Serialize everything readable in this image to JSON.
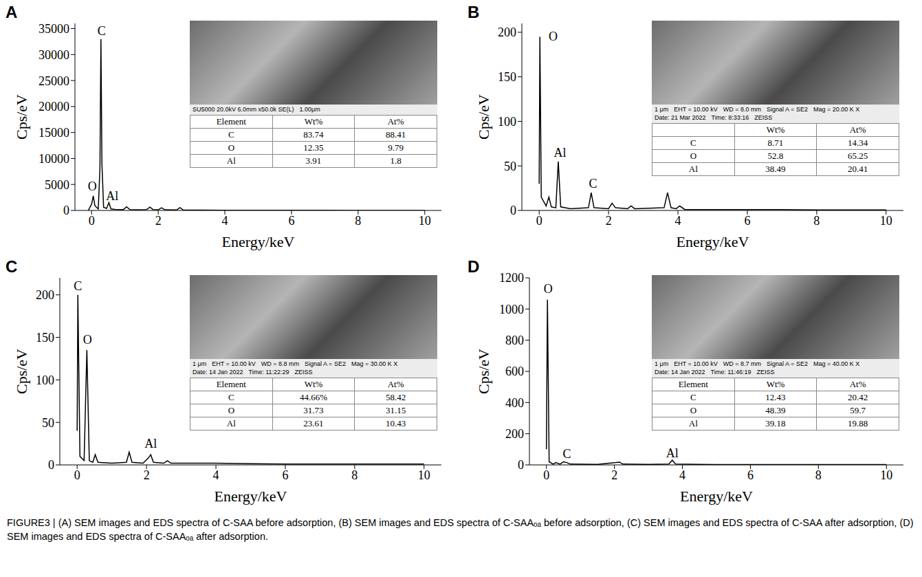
{
  "chart_data": [
    {
      "type": "line",
      "title": "A",
      "x_label": "Energy/keV",
      "y_label": "Cps/eV",
      "color": "#000000",
      "grid": false,
      "x": [
        -0.1,
        0,
        0.05,
        0.1,
        0.2,
        0.25,
        0.28,
        0.31,
        0.36,
        0.45,
        0.52,
        0.58,
        0.7,
        0.95,
        1.05,
        1.15,
        1.4,
        1.65,
        1.75,
        1.85,
        2.0,
        2.1,
        2.2,
        2.55,
        2.65,
        2.75,
        3.0,
        3.3,
        4,
        5,
        6,
        7,
        8,
        9,
        10
      ],
      "values": [
        0,
        1200,
        2800,
        900,
        300,
        8000,
        33000,
        9000,
        600,
        400,
        1500,
        300,
        200,
        150,
        700,
        150,
        120,
        150,
        650,
        150,
        120,
        500,
        120,
        100,
        550,
        100,
        80,
        60,
        40,
        30,
        20,
        20,
        15,
        10,
        10
      ],
      "xlim": [
        -0.5,
        10.5
      ],
      "xticks": [
        0,
        2,
        4,
        6,
        8,
        10
      ],
      "ylim": [
        0,
        36000
      ],
      "yticks": [
        0,
        5000,
        10000,
        15000,
        20000,
        25000,
        30000,
        35000
      ],
      "annotations": [
        {
          "text": "O",
          "x": 0.02,
          "y": 4600
        },
        {
          "text": "C",
          "x": 0.3,
          "y": 34600
        },
        {
          "text": "Al",
          "x": 0.62,
          "y": 2800
        }
      ],
      "inset": {
        "image_text": [
          "SU5000 20.0kV 6.0mm x50.0k SE(L)",
          "1.00μm"
        ],
        "table": {
          "header": [
            "Element",
            "Wt%",
            "At%"
          ],
          "rows": [
            [
              "C",
              "83.74",
              "88.41"
            ],
            [
              "O",
              "12.35",
              "9.79"
            ],
            [
              "Al",
              "3.91",
              "1.8"
            ]
          ]
        }
      }
    },
    {
      "type": "line",
      "title": "B",
      "x_label": "Energy/keV",
      "y_label": "Cps/eV",
      "color": "#000000",
      "grid": false,
      "x": [
        0,
        0.02,
        0.06,
        0.2,
        0.28,
        0.35,
        0.48,
        0.55,
        0.62,
        0.9,
        1.42,
        1.5,
        1.58,
        2.0,
        2.1,
        2.2,
        2.55,
        2.65,
        2.75,
        3.6,
        3.7,
        3.8,
        3.95,
        4.05,
        4.2,
        5,
        6,
        7,
        8,
        9,
        10
      ],
      "values": [
        30,
        195,
        15,
        5,
        15,
        4,
        3,
        55,
        4,
        2,
        3,
        20,
        3,
        2,
        8,
        3,
        2,
        5,
        2,
        3,
        20,
        3,
        2,
        5,
        1,
        1,
        1,
        1,
        0.5,
        0.5,
        0.5
      ],
      "xlim": [
        -0.5,
        10.5
      ],
      "xticks": [
        0,
        2,
        4,
        6,
        8,
        10
      ],
      "ylim": [
        0,
        210
      ],
      "yticks": [
        0,
        50,
        100,
        150,
        200
      ],
      "annotations": [
        {
          "text": "O",
          "x": 0.4,
          "y": 195
        },
        {
          "text": "Al",
          "x": 0.6,
          "y": 65
        },
        {
          "text": "C",
          "x": 1.55,
          "y": 30
        }
      ],
      "inset": {
        "image_text": [
          "1 μm",
          "EHT = 10.00 kV",
          "WD = 8.0 mm",
          "Signal A = SE2",
          "Mag = 20.00 K X",
          "Date: 21 Mar 2022",
          "Time: 8:33:16",
          "ZEISS"
        ],
        "table": {
          "header": [
            null,
            "Wt%",
            "At%"
          ],
          "rows": [
            [
              "C",
              "8.71",
              "14.34"
            ],
            [
              "O",
              "52.8",
              "65.25"
            ],
            [
              "Al",
              "38.49",
              "20.41"
            ]
          ]
        }
      }
    },
    {
      "type": "line",
      "title": "C",
      "x_label": "Energy/keV",
      "y_label": "Cps/eV",
      "color": "#000000",
      "grid": false,
      "x": [
        0,
        0.02,
        0.08,
        0.2,
        0.28,
        0.35,
        0.45,
        0.52,
        0.6,
        1.0,
        1.42,
        1.5,
        1.58,
        1.9,
        2.05,
        2.12,
        2.2,
        2.5,
        2.6,
        2.7,
        3,
        4,
        5,
        6,
        7,
        8,
        9,
        10
      ],
      "values": [
        40,
        200,
        10,
        5,
        135,
        5,
        3,
        12,
        3,
        2,
        3,
        15,
        3,
        2,
        8,
        12,
        3,
        2,
        5,
        2,
        2,
        2,
        1.5,
        1,
        1,
        1,
        1,
        1
      ],
      "xlim": [
        -0.5,
        10.5
      ],
      "xticks": [
        0,
        2,
        4,
        6,
        8,
        10
      ],
      "ylim": [
        0,
        220
      ],
      "yticks": [
        0,
        50,
        100,
        150,
        200
      ],
      "annotations": [
        {
          "text": "C",
          "x": 0.02,
          "y": 210
        },
        {
          "text": "O",
          "x": 0.3,
          "y": 147
        },
        {
          "text": "Al",
          "x": 2.12,
          "y": 25
        }
      ],
      "inset": {
        "image_text": [
          "1 μm",
          "EHT = 10.00 kV",
          "WD = 8.8 mm",
          "Signal A = SE2",
          "Mag = 30.00 K X",
          "Date: 14 Jan 2022",
          "Time: 11:22:29",
          "ZEISS"
        ],
        "table": {
          "header": [
            "Element",
            "Wt%",
            "At%"
          ],
          "rows": [
            [
              "C",
              "44.66%",
              "58.42"
            ],
            [
              "O",
              "31.73",
              "31.15"
            ],
            [
              "Al",
              "23.61",
              "10.43"
            ]
          ]
        }
      }
    },
    {
      "type": "line",
      "title": "D",
      "x_label": "Energy/keV",
      "y_label": "Cps/eV",
      "color": "#000000",
      "grid": false,
      "x": [
        0,
        0.03,
        0.08,
        0.2,
        0.28,
        0.4,
        0.5,
        0.6,
        0.7,
        1.5,
        2.05,
        2.15,
        2.25,
        3.0,
        3.6,
        3.7,
        3.8,
        5,
        6,
        7,
        8,
        9,
        10
      ],
      "values": [
        100,
        1060,
        20,
        5,
        15,
        5,
        20,
        15,
        5,
        3,
        15,
        18,
        5,
        3,
        5,
        30,
        5,
        2,
        2,
        2,
        2,
        2,
        2
      ],
      "xlim": [
        -0.5,
        10.5
      ],
      "xticks": [
        0,
        2,
        4,
        6,
        8,
        10
      ],
      "ylim": [
        0,
        1200
      ],
      "yticks": [
        0,
        200,
        400,
        600,
        800,
        1000,
        1200
      ],
      "annotations": [
        {
          "text": "O",
          "x": 0.05,
          "y": 1130
        },
        {
          "text": "C",
          "x": 0.6,
          "y": 70
        },
        {
          "text": "Al",
          "x": 3.7,
          "y": 75
        }
      ],
      "inset": {
        "image_text": [
          "1 μm",
          "EHT = 10.00 kV",
          "WD = 8.7 mm",
          "Signal A = SE2",
          "Mag = 40.00 K X",
          "Date: 14 Jan 2022",
          "Time: 11:46:19",
          "ZEISS"
        ],
        "table": {
          "header": [
            "Element",
            "Wt%",
            "At%"
          ],
          "rows": [
            [
              "C",
              "12.43",
              "20.42"
            ],
            [
              "O",
              "48.39",
              "59.7"
            ],
            [
              "Al",
              "39.18",
              "19.88"
            ]
          ]
        }
      }
    }
  ],
  "caption": "FIGURE3 | (A) SEM images and EDS spectra of C-SAA before adsorption, (B) SEM images and EDS spectra of C-SAAₒₐ before adsorption, (C) SEM images and EDS spectra of C-SAA after adsorption, (D) SEM images and EDS spectra of C-SAAₒₐ after adsorption."
}
